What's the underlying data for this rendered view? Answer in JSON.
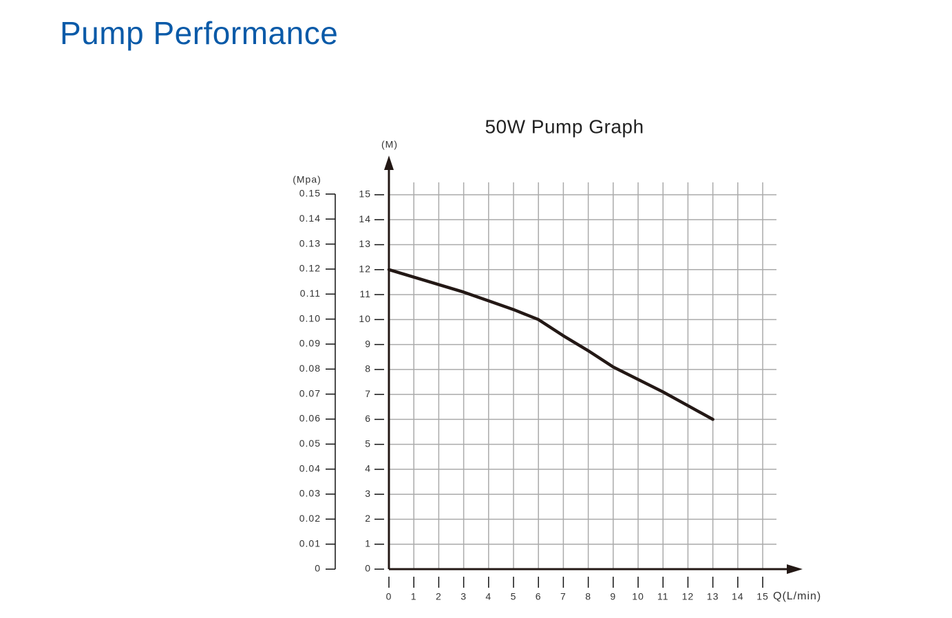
{
  "header": {
    "title": "Pump Performance"
  },
  "chart_data": {
    "type": "line",
    "title": "50W Pump Graph",
    "xlabel": "Q(L/min)",
    "ylabel": "(M)",
    "y2label": "(Mpa)",
    "x": [
      0,
      1,
      2,
      3,
      4,
      5,
      6,
      7,
      8,
      9,
      10,
      11,
      12,
      13
    ],
    "values": [
      12,
      11.7,
      11.4,
      11.1,
      10.75,
      10.4,
      10,
      9.35,
      8.75,
      8.1,
      7.6,
      7.1,
      6.55,
      6
    ],
    "color": "#231815",
    "xlim": [
      0,
      15
    ],
    "xticks": [
      0,
      1,
      2,
      3,
      4,
      5,
      6,
      7,
      8,
      9,
      10,
      11,
      12,
      13,
      14,
      15
    ],
    "ylim": [
      0,
      15
    ],
    "yticks": [
      0,
      1,
      2,
      3,
      4,
      5,
      6,
      7,
      8,
      9,
      10,
      11,
      12,
      13,
      14,
      15
    ],
    "y2lim": [
      0,
      0.15
    ],
    "y2ticks": [
      0,
      0.01,
      0.02,
      0.03,
      0.04,
      0.05,
      0.06,
      0.07,
      0.08,
      0.09,
      {
        "value": 0.1,
        "label": "0.10"
      },
      0.11,
      0.12,
      0.13,
      0.14,
      0.15
    ],
    "grid": true
  }
}
